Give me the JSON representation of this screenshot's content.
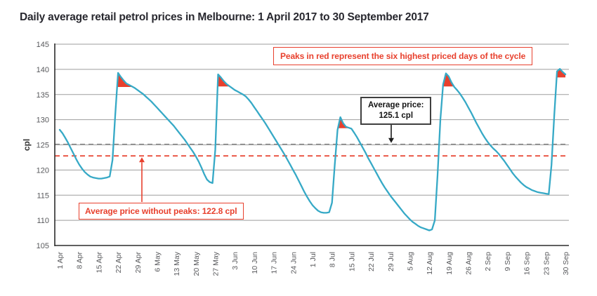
{
  "title": "Daily average retail petrol prices in Melbourne: 1 April 2017 to 30 September 2017",
  "annotations": {
    "peaks_note": "Peaks in red represent the six highest priced days of the cycle",
    "avg_label_line1": "Average price:",
    "avg_label_line2": "125.1 cpl",
    "avg_no_peaks_note": "Average price without peaks: 122.8 cpl"
  },
  "colors": {
    "line": "#36a9c6",
    "red": "#e8402d",
    "grid": "#9e9e9e",
    "axis": "#2b2b2b",
    "avg_dash": "#8f8f8f",
    "tick_label": "#58595c",
    "axis_title": "#333333"
  },
  "chart_data": {
    "type": "line",
    "title": "Daily average retail petrol prices in Melbourne: 1 April 2017 to 30 September 2017",
    "xlabel": "",
    "ylabel": "cpl",
    "ylim": [
      105,
      145
    ],
    "yticks": [
      105,
      110,
      115,
      120,
      125,
      130,
      135,
      140,
      145
    ],
    "grid": "horizontal",
    "legend": "none",
    "average_price": 125.1,
    "average_price_without_peaks": 122.8,
    "x_unit": "day index, 0 = 1 Apr 2017",
    "x_tick_days": [
      0,
      7,
      14,
      21,
      28,
      35,
      42,
      49,
      56,
      63,
      70,
      77,
      84,
      91,
      98,
      105,
      112,
      119,
      126,
      133,
      140,
      147,
      154,
      161,
      168,
      175,
      182
    ],
    "x_tick_labels": [
      "1 Apr",
      "8 Apr",
      "15 Apr",
      "22 Apr",
      "29 Apr",
      "6 May",
      "13 May",
      "20 May",
      "27 May",
      "3 Jun",
      "10 Jun",
      "17 Jun",
      "24 Jun",
      "1 Jul",
      "8 Jul",
      "15 Jul",
      "22 Jul",
      "29 Jul",
      "5 Aug",
      "12 Aug",
      "19 Aug",
      "26 Aug",
      "2 Sep",
      "9 Sep",
      "16 Sep",
      "23 Sep",
      "30 Sep"
    ],
    "red_peaks": [
      {
        "start_day": 18,
        "end_day": 29,
        "base": 136.5
      },
      {
        "start_day": 55,
        "end_day": 63,
        "base": 136.6
      },
      {
        "start_day": 98,
        "end_day": 106,
        "base": 128.3
      },
      {
        "start_day": 136,
        "end_day": 143,
        "base": 136.6
      },
      {
        "start_day": 176,
        "end_day": 182,
        "base": 138.4
      }
    ],
    "values": [
      128.0,
      127.3,
      126.4,
      125.4,
      124.3,
      123.2,
      122.1,
      121.1,
      120.3,
      119.6,
      119.1,
      118.7,
      118.5,
      118.4,
      118.3,
      118.3,
      118.4,
      118.5,
      118.7,
      122.0,
      131.0,
      139.3,
      138.5,
      137.8,
      137.2,
      136.9,
      136.6,
      136.3,
      135.9,
      135.5,
      135.1,
      134.6,
      134.1,
      133.6,
      133.0,
      132.4,
      131.8,
      131.2,
      130.6,
      130.0,
      129.4,
      128.8,
      128.1,
      127.4,
      126.7,
      126.0,
      125.2,
      124.4,
      123.6,
      122.7,
      121.7,
      120.5,
      119.2,
      118.1,
      117.6,
      117.4,
      124.0,
      139.0,
      138.4,
      137.7,
      137.1,
      136.7,
      136.3,
      135.9,
      135.6,
      135.3,
      135.0,
      134.6,
      134.0,
      133.3,
      132.5,
      131.7,
      130.9,
      130.1,
      129.3,
      128.4,
      127.5,
      126.6,
      125.7,
      124.8,
      123.9,
      123.0,
      122.0,
      121.0,
      120.0,
      119.0,
      117.9,
      116.8,
      115.7,
      114.7,
      113.8,
      113.0,
      112.4,
      111.9,
      111.6,
      111.5,
      111.5,
      111.6,
      113.5,
      121.0,
      128.0,
      130.5,
      129.3,
      128.6,
      128.4,
      128.2,
      127.4,
      126.5,
      125.5,
      124.5,
      123.5,
      122.4,
      121.4,
      120.4,
      119.4,
      118.4,
      117.4,
      116.5,
      115.7,
      114.9,
      114.2,
      113.5,
      112.8,
      112.1,
      111.4,
      110.8,
      110.2,
      109.7,
      109.3,
      108.9,
      108.6,
      108.4,
      108.2,
      108.0,
      108.2,
      110.0,
      119.0,
      130.0,
      137.0,
      139.2,
      138.6,
      137.4,
      136.5,
      135.9,
      135.2,
      134.4,
      133.5,
      132.5,
      131.5,
      130.4,
      129.3,
      128.3,
      127.3,
      126.4,
      125.6,
      124.9,
      124.3,
      123.8,
      123.2,
      122.5,
      121.8,
      121.0,
      120.2,
      119.4,
      118.7,
      118.1,
      117.5,
      117.0,
      116.6,
      116.3,
      116.0,
      115.8,
      115.6,
      115.5,
      115.4,
      115.3,
      115.2,
      121.0,
      131.0,
      139.6,
      140.1,
      139.5,
      139.0
    ]
  }
}
